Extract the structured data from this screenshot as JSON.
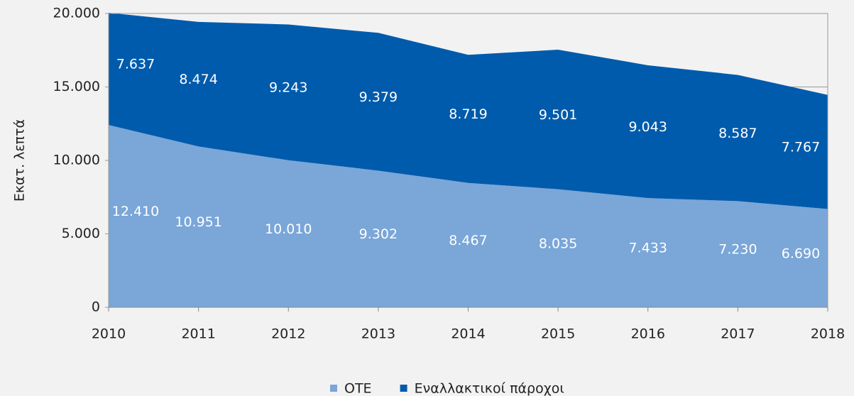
{
  "chart_data": {
    "type": "stacked_area",
    "y_label": "Εκατ. λεπτά",
    "x": [
      2010,
      2011,
      2012,
      2013,
      2014,
      2015,
      2016,
      2017,
      2018
    ],
    "xlim": [
      2010,
      2018
    ],
    "xticks": [
      2010,
      2011,
      2012,
      2013,
      2014,
      2015,
      2016,
      2017,
      2018
    ],
    "ylim": [
      0,
      20000
    ],
    "yticks": [
      0,
      {
        "value": 5000,
        "label": "5.000"
      },
      {
        "value": 10000,
        "label": "10.000"
      },
      {
        "value": 15000,
        "label": "15.000"
      },
      {
        "value": 20000,
        "label": "20.000"
      }
    ],
    "grid": true,
    "legend": "bottom",
    "series": [
      {
        "name": "OTE",
        "color": "#7aa6d8",
        "values": [
          12410,
          10951,
          10010,
          9302,
          8467,
          8035,
          7433,
          7230,
          6690
        ],
        "value_labels": [
          "12.410",
          "10.951",
          "10.010",
          "9.302",
          "8.467",
          "8.035",
          "7.433",
          "7.230",
          "6.690"
        ]
      },
      {
        "name": "Εναλλακτικοί πάροχοι",
        "color": "#005bac",
        "values": [
          7637,
          8474,
          9243,
          9379,
          8719,
          9501,
          9043,
          8587,
          7767
        ],
        "value_labels": [
          "7.637",
          "8.474",
          "9.243",
          "9.379",
          "8.719",
          "9.501",
          "9.043",
          "8.587",
          "7.767"
        ]
      }
    ]
  }
}
